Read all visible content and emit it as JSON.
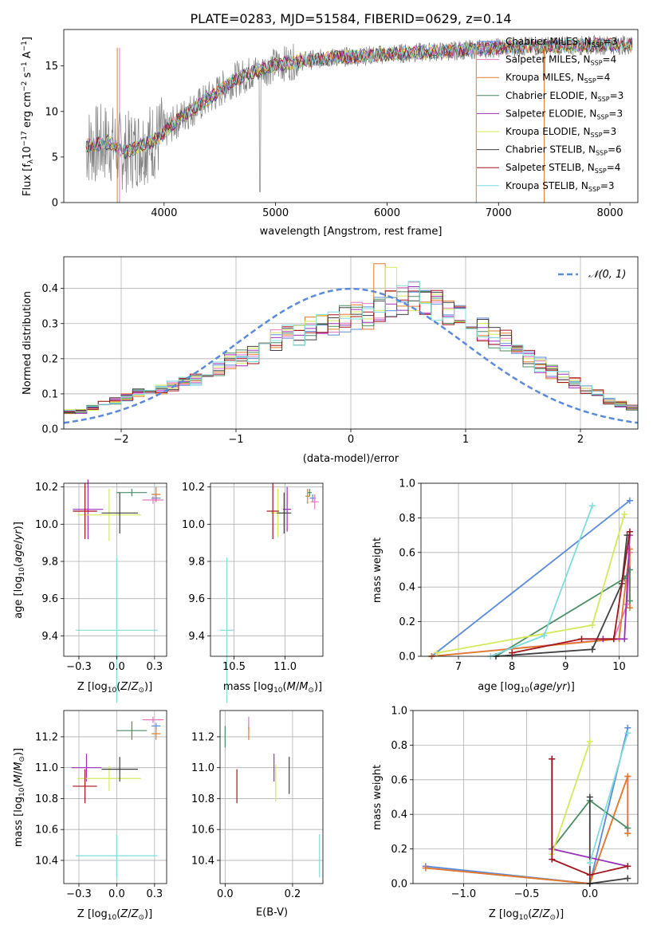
{
  "figure_title": "PLATE=0283, MJD=51584, FIBERID=0629, z=0.14",
  "colors": {
    "chabrier_miles": "#5b8bd8",
    "salpeter_miles": "#e377c2",
    "kroupa_miles": "#e07b2a",
    "chabrier_elodie": "#4c8c64",
    "salpeter_elodie": "#9b30b8",
    "kroupa_elodie": "#d4e85a",
    "chabrier_stelib": "#404040",
    "salpeter_stelib": "#a0151d",
    "kroupa_stelib": "#7fdcdc",
    "data_gray": "#7f7f7f",
    "gauss": "#5b8bd8"
  },
  "chart_data": [
    {
      "id": "spectrum",
      "type": "line",
      "xlabel": "wavelength [Angstrom, rest frame]",
      "ylabel": "Flux [f_λ 10^-17 erg cm^-2 s^-1 A^-1]",
      "xlim": [
        3100,
        8250
      ],
      "ylim": [
        0,
        19
      ],
      "xticks": [
        4000,
        5000,
        6000,
        7000,
        8000
      ],
      "yticks": [
        0,
        5,
        10,
        15
      ],
      "legend_position": "upper right",
      "legend": [
        {
          "key": "chabrier_miles",
          "label": "Chabrier MILES, N",
          "sub": "SSP",
          "suffix": "=3"
        },
        {
          "key": "salpeter_miles",
          "label": "Salpeter MILES, N",
          "sub": "SSP",
          "suffix": "=4"
        },
        {
          "key": "kroupa_miles",
          "label": "Kroupa MILES, N",
          "sub": "SSP",
          "suffix": "=4"
        },
        {
          "key": "chabrier_elodie",
          "label": "Chabrier ELODIE, N",
          "sub": "SSP",
          "suffix": "=3"
        },
        {
          "key": "salpeter_elodie",
          "label": "Salpeter ELODIE, N",
          "sub": "SSP",
          "suffix": "=3"
        },
        {
          "key": "kroupa_elodie",
          "label": "Kroupa ELODIE, N",
          "sub": "SSP",
          "suffix": "=3"
        },
        {
          "key": "chabrier_stelib",
          "label": "Chabrier STELIB, N",
          "sub": "SSP",
          "suffix": "=6"
        },
        {
          "key": "salpeter_stelib",
          "label": "Salpeter STELIB, N",
          "sub": "SSP",
          "suffix": "=4"
        },
        {
          "key": "kroupa_stelib",
          "label": "Kroupa STELIB, N",
          "sub": "SSP",
          "suffix": "=3"
        }
      ],
      "continuum": [
        [
          3300,
          6.2
        ],
        [
          3500,
          6.6
        ],
        [
          3650,
          5.5
        ],
        [
          3800,
          6.3
        ],
        [
          3950,
          7.0
        ],
        [
          4050,
          8.3
        ],
        [
          4200,
          9.8
        ],
        [
          4300,
          10.6
        ],
        [
          4450,
          11.8
        ],
        [
          4600,
          13.3
        ],
        [
          4800,
          14.3
        ],
        [
          5000,
          15.1
        ],
        [
          5200,
          15.5
        ],
        [
          5500,
          15.9
        ],
        [
          5800,
          16.1
        ],
        [
          6000,
          16.3
        ],
        [
          6500,
          16.6
        ],
        [
          7000,
          17.0
        ],
        [
          7500,
          17.2
        ],
        [
          8000,
          17.3
        ],
        [
          8200,
          17.3
        ]
      ]
    },
    {
      "id": "residuals",
      "type": "histogram",
      "xlabel": "(data-model)/error",
      "ylabel": "Normed distribution",
      "xlim": [
        -2.5,
        2.5
      ],
      "ylim": [
        0,
        0.49
      ],
      "xticks": [
        -2,
        -1,
        0,
        1,
        2
      ],
      "yticks": [
        0.0,
        0.1,
        0.2,
        0.3,
        0.4
      ],
      "gauss_label": "𝒩(0, 1)",
      "legend_position": "upper right",
      "bin_width": 0.1,
      "bin_start": -2.5,
      "envelope": [
        0.05,
        0.05,
        0.06,
        0.07,
        0.08,
        0.09,
        0.1,
        0.1,
        0.11,
        0.12,
        0.13,
        0.14,
        0.15,
        0.17,
        0.19,
        0.2,
        0.21,
        0.23,
        0.25,
        0.26,
        0.27,
        0.28,
        0.29,
        0.3,
        0.31,
        0.32,
        0.32,
        0.33,
        0.35,
        0.36,
        0.37,
        0.36,
        0.35,
        0.32,
        0.31,
        0.3,
        0.28,
        0.26,
        0.25,
        0.22,
        0.2,
        0.18,
        0.16,
        0.15,
        0.13,
        0.11,
        0.1,
        0.08,
        0.07,
        0.06
      ]
    },
    {
      "id": "age_vs_Z",
      "type": "errorbar",
      "xlabel": "Z [log10(Z/Z⊙)]",
      "ylabel": "age [log10(age/yr)]",
      "xlim": [
        -0.35,
        0.33
      ],
      "ylim": [
        9.29,
        10.22
      ],
      "xticks": [
        -0.25,
        0.0,
        0.25
      ],
      "yticks": [
        9.4,
        9.6,
        9.8,
        10.0,
        10.2
      ],
      "points": [
        {
          "key": "chabrier_miles",
          "x": 0.26,
          "y": 10.14,
          "xerr": 0.03,
          "yerr": 0.02
        },
        {
          "key": "salpeter_miles",
          "x": 0.24,
          "y": 10.13,
          "xerr": 0.07,
          "yerr": 0.02
        },
        {
          "key": "kroupa_miles",
          "x": 0.26,
          "y": 10.16,
          "xerr": 0.03,
          "yerr": 0.04
        },
        {
          "key": "chabrier_elodie",
          "x": 0.1,
          "y": 10.17,
          "xerr": 0.1,
          "yerr": 0.02
        },
        {
          "key": "salpeter_elodie",
          "x": -0.19,
          "y": 10.08,
          "xerr": 0.1,
          "yerr": 0.16
        },
        {
          "key": "kroupa_elodie",
          "x": -0.05,
          "y": 10.05,
          "xerr": 0.21,
          "yerr": 0.14
        },
        {
          "key": "chabrier_stelib",
          "x": 0.02,
          "y": 10.06,
          "xerr": 0.12,
          "yerr": 0.11
        },
        {
          "key": "salpeter_stelib",
          "x": -0.21,
          "y": 10.07,
          "xerr": 0.08,
          "yerr": 0.15
        },
        {
          "key": "kroupa_stelib",
          "x": 0.0,
          "y": 9.43,
          "xerr": 0.27,
          "yerr": 0.39
        }
      ]
    },
    {
      "id": "age_vs_mass",
      "type": "errorbar",
      "xlabel": "mass [log10(M/M⊙)]",
      "ylabel": "",
      "xlim": [
        10.27,
        11.37
      ],
      "ylim": [
        9.29,
        10.22
      ],
      "xticks": [
        10.5,
        11.0
      ],
      "yticks": [
        9.4,
        9.6,
        9.8,
        10.0,
        10.2
      ],
      "points": [
        {
          "key": "chabrier_miles",
          "x": 11.27,
          "y": 10.14,
          "xerr": 0.03,
          "yerr": 0.02
        },
        {
          "key": "salpeter_miles",
          "x": 11.29,
          "y": 10.12,
          "xerr": 0.04,
          "yerr": 0.04
        },
        {
          "key": "kroupa_miles",
          "x": 11.22,
          "y": 10.15,
          "xerr": 0.02,
          "yerr": 0.04
        },
        {
          "key": "chabrier_elodie",
          "x": 11.24,
          "y": 10.17,
          "xerr": 0.02,
          "yerr": 0.02
        },
        {
          "key": "salpeter_elodie",
          "x": 11.02,
          "y": 10.08,
          "xerr": 0.04,
          "yerr": 0.12
        },
        {
          "key": "kroupa_elodie",
          "x": 10.93,
          "y": 10.06,
          "xerr": 0.07,
          "yerr": 0.13
        },
        {
          "key": "chabrier_stelib",
          "x": 10.99,
          "y": 10.06,
          "xerr": 0.07,
          "yerr": 0.11
        },
        {
          "key": "salpeter_stelib",
          "x": 10.88,
          "y": 10.07,
          "xerr": 0.06,
          "yerr": 0.15
        },
        {
          "key": "kroupa_stelib",
          "x": 10.43,
          "y": 9.43,
          "xerr": 0.07,
          "yerr": 0.39
        }
      ]
    },
    {
      "id": "weight_vs_age",
      "type": "line",
      "xlabel": "age [log10(age/yr)]",
      "ylabel": "mass weight",
      "xlim": [
        6.3,
        10.35
      ],
      "ylim": [
        0,
        1.0
      ],
      "xticks": [
        7,
        8,
        9,
        10
      ],
      "yticks": [
        0.0,
        0.2,
        0.4,
        0.6,
        0.8,
        1.0
      ],
      "series": [
        {
          "key": "chabrier_miles",
          "points": [
            [
              6.5,
              0.0
            ],
            [
              10.2,
              0.9
            ]
          ]
        },
        {
          "key": "salpeter_miles",
          "points": [
            [
              6.5,
              0.0
            ],
            [
              9.9,
              0.1
            ],
            [
              10.15,
              0.3
            ],
            [
              10.2,
              0.6
            ]
          ]
        },
        {
          "key": "kroupa_miles",
          "points": [
            [
              6.5,
              0.0
            ],
            [
              10.0,
              0.1
            ],
            [
              10.2,
              0.62
            ],
            [
              10.2,
              0.28
            ]
          ]
        },
        {
          "key": "chabrier_elodie",
          "points": [
            [
              7.7,
              0.0
            ],
            [
              10.1,
              0.45
            ],
            [
              10.2,
              0.5
            ],
            [
              10.2,
              0.32
            ]
          ]
        },
        {
          "key": "salpeter_elodie",
          "points": [
            [
              9.7,
              0.1
            ],
            [
              10.1,
              0.1
            ],
            [
              10.2,
              0.7
            ]
          ]
        },
        {
          "key": "kroupa_elodie",
          "points": [
            [
              6.6,
              0.02
            ],
            [
              9.5,
              0.18
            ],
            [
              10.1,
              0.82
            ]
          ]
        },
        {
          "key": "chabrier_stelib",
          "points": [
            [
              7.7,
              0.0
            ],
            [
              9.5,
              0.04
            ],
            [
              10.05,
              0.42
            ],
            [
              10.15,
              0.7
            ]
          ]
        },
        {
          "key": "salpeter_stelib",
          "points": [
            [
              8.0,
              0.02
            ],
            [
              9.3,
              0.1
            ],
            [
              9.9,
              0.1
            ],
            [
              10.2,
              0.72
            ]
          ]
        },
        {
          "key": "kroupa_stelib",
          "points": [
            [
              7.6,
              0.0
            ],
            [
              8.6,
              0.12
            ],
            [
              9.5,
              0.87
            ]
          ]
        }
      ]
    },
    {
      "id": "mass_vs_Z",
      "type": "errorbar",
      "xlabel": "Z [log10(Z/Z⊙)]",
      "ylabel": "mass [log10(M/M⊙)]",
      "xlim": [
        -0.35,
        0.33
      ],
      "ylim": [
        10.25,
        11.37
      ],
      "xticks": [
        -0.25,
        0.0,
        0.25
      ],
      "yticks": [
        10.4,
        10.6,
        10.8,
        11.0,
        11.2
      ],
      "points": [
        {
          "key": "chabrier_miles",
          "x": 0.26,
          "y": 11.27,
          "xerr": 0.03,
          "yerr": 0.02
        },
        {
          "key": "salpeter_miles",
          "x": 0.24,
          "y": 11.31,
          "xerr": 0.07,
          "yerr": 0.02
        },
        {
          "key": "kroupa_miles",
          "x": 0.26,
          "y": 11.22,
          "xerr": 0.03,
          "yerr": 0.04
        },
        {
          "key": "chabrier_elodie",
          "x": 0.1,
          "y": 11.24,
          "xerr": 0.1,
          "yerr": 0.06
        },
        {
          "key": "salpeter_elodie",
          "x": -0.2,
          "y": 11.0,
          "xerr": 0.1,
          "yerr": 0.09
        },
        {
          "key": "kroupa_elodie",
          "x": -0.05,
          "y": 10.93,
          "xerr": 0.21,
          "yerr": 0.08
        },
        {
          "key": "chabrier_stelib",
          "x": 0.02,
          "y": 10.99,
          "xerr": 0.12,
          "yerr": 0.08
        },
        {
          "key": "salpeter_stelib",
          "x": -0.21,
          "y": 10.88,
          "xerr": 0.08,
          "yerr": 0.11
        },
        {
          "key": "kroupa_stelib",
          "x": 0.0,
          "y": 10.43,
          "xerr": 0.27,
          "yerr": 0.14
        }
      ]
    },
    {
      "id": "mass_vs_ebv",
      "type": "errorbar",
      "xlabel": "E(B-V)",
      "ylabel": "",
      "xlim": [
        -0.015,
        0.29
      ],
      "ylim": [
        10.25,
        11.37
      ],
      "xticks": [
        0.0,
        0.2
      ],
      "yticks": [
        10.4,
        10.6,
        10.8,
        11.0,
        11.2
      ],
      "points": [
        {
          "key": "chabrier_miles",
          "x": 0.07,
          "y": 11.27,
          "xerr": 0.0,
          "yerr": 0.02
        },
        {
          "key": "salpeter_miles",
          "x": 0.07,
          "y": 11.29,
          "xerr": 0.0,
          "yerr": 0.04
        },
        {
          "key": "kroupa_miles",
          "x": 0.07,
          "y": 11.22,
          "xerr": 0.0,
          "yerr": 0.04
        },
        {
          "key": "chabrier_elodie",
          "x": 0.0,
          "y": 11.2,
          "xerr": 0.0,
          "yerr": 0.07
        },
        {
          "key": "salpeter_elodie",
          "x": 0.145,
          "y": 11.0,
          "xerr": 0.0,
          "yerr": 0.09
        },
        {
          "key": "kroupa_elodie",
          "x": 0.15,
          "y": 10.9,
          "xerr": 0.0,
          "yerr": 0.12
        },
        {
          "key": "chabrier_stelib",
          "x": 0.19,
          "y": 10.95,
          "xerr": 0.0,
          "yerr": 0.12
        },
        {
          "key": "salpeter_stelib",
          "x": 0.035,
          "y": 10.88,
          "xerr": 0.0,
          "yerr": 0.11
        },
        {
          "key": "kroupa_stelib",
          "x": 0.28,
          "y": 10.43,
          "xerr": 0.0,
          "yerr": 0.14
        }
      ]
    },
    {
      "id": "weight_vs_Z",
      "type": "line",
      "xlabel": "Z [log10(Z/Z⊙)]",
      "ylabel": "mass weight",
      "xlim": [
        -1.4,
        0.38
      ],
      "ylim": [
        0,
        1.0
      ],
      "xticks": [
        -1.0,
        -0.5,
        0.0
      ],
      "yticks": [
        0.0,
        0.2,
        0.4,
        0.6,
        0.8,
        1.0
      ],
      "series": [
        {
          "key": "chabrier_miles",
          "points": [
            [
              -1.3,
              0.1
            ],
            [
              0.0,
              0.0
            ],
            [
              0.3,
              0.9
            ]
          ]
        },
        {
          "key": "salpeter_miles",
          "points": [
            [
              -1.3,
              0.09
            ],
            [
              0.0,
              0.0
            ],
            [
              0.3,
              0.62
            ],
            [
              0.3,
              0.29
            ]
          ]
        },
        {
          "key": "kroupa_miles",
          "points": [
            [
              -1.3,
              0.09
            ],
            [
              0.0,
              0.0
            ],
            [
              0.3,
              0.62
            ],
            [
              0.3,
              0.29
            ]
          ]
        },
        {
          "key": "chabrier_elodie",
          "points": [
            [
              -0.3,
              0.2
            ],
            [
              0.0,
              0.48
            ],
            [
              0.3,
              0.32
            ]
          ]
        },
        {
          "key": "salpeter_elodie",
          "points": [
            [
              -0.3,
              0.72
            ],
            [
              -0.3,
              0.2
            ],
            [
              0.3,
              0.1
            ]
          ]
        },
        {
          "key": "kroupa_elodie",
          "points": [
            [
              -0.3,
              0.17
            ],
            [
              0.0,
              0.82
            ]
          ]
        },
        {
          "key": "chabrier_stelib",
          "points": [
            [
              0.0,
              0.5
            ],
            [
              0.0,
              0.0
            ],
            [
              0.3,
              0.03
            ]
          ]
        },
        {
          "key": "salpeter_stelib",
          "points": [
            [
              -0.3,
              0.72
            ],
            [
              -0.3,
              0.14
            ],
            [
              0.0,
              0.05
            ],
            [
              0.3,
              0.1
            ]
          ]
        },
        {
          "key": "kroupa_stelib",
          "points": [
            [
              0.0,
              0.12
            ],
            [
              0.3,
              0.87
            ]
          ]
        }
      ]
    }
  ]
}
